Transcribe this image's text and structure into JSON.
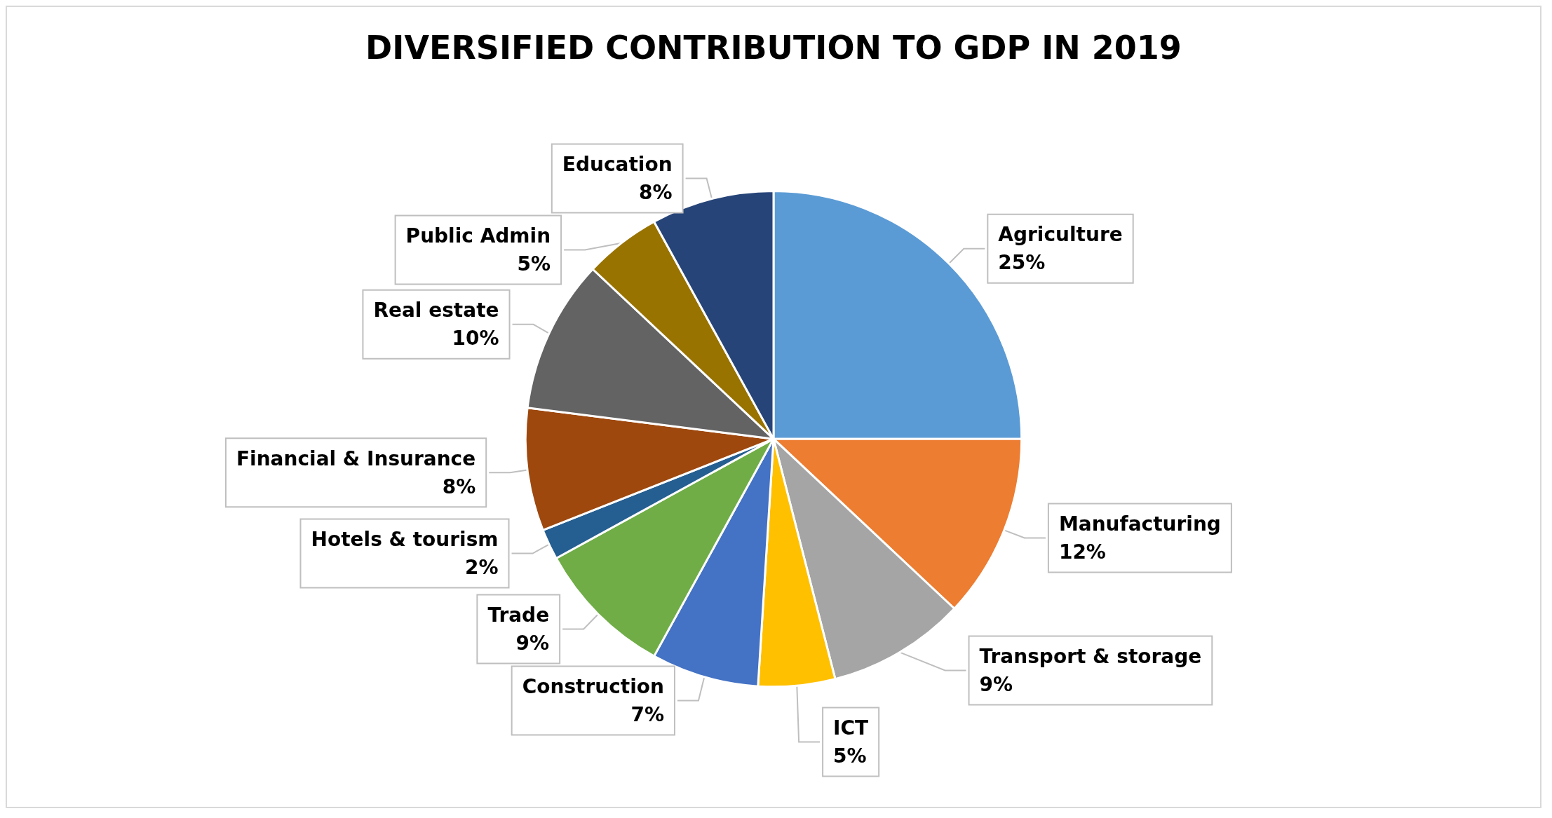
{
  "chart_data": {
    "type": "pie",
    "title": "DIVERSIFIED CONTRIBUTION TO GDP IN 2019",
    "categories": [
      "Agriculture",
      "Manufacturing",
      "Transport & storage",
      "ICT",
      "Construction",
      "Trade",
      "Hotels & tourism",
      "Financial & Insurance",
      "Real estate",
      "Public Admin",
      "Education"
    ],
    "values": [
      25,
      12,
      9,
      5,
      7,
      9,
      2,
      8,
      10,
      5,
      8
    ],
    "value_labels": [
      "25%",
      "12%",
      "9%",
      "5%",
      "7%",
      "9%",
      "2%",
      "8%",
      "10%",
      "5%",
      "8%"
    ],
    "colors": [
      "#5b9bd5",
      "#ed7d31",
      "#a5a5a5",
      "#ffc000",
      "#4472c4",
      "#70ad47",
      "#255e91",
      "#9e480e",
      "#636363",
      "#997300",
      "#264478"
    ]
  }
}
